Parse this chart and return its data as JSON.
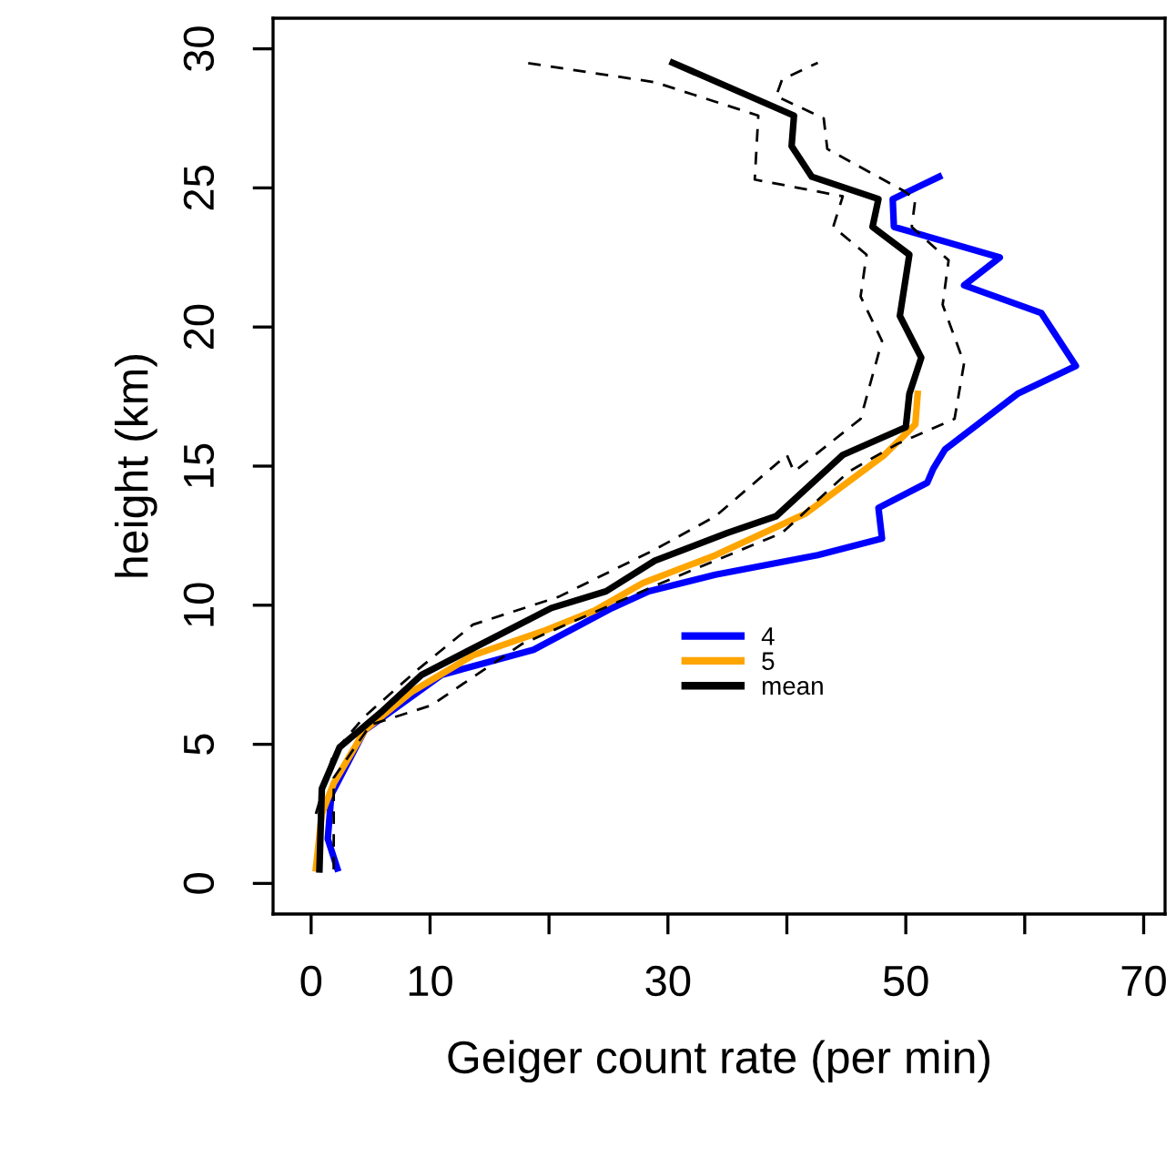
{
  "chart_data": {
    "type": "line",
    "xlabel": "Geiger count rate (per min)",
    "ylabel": "height (km)",
    "xlim": [
      -3.2,
      71.8
    ],
    "ylim": [
      -1.1,
      31.1
    ],
    "xticks": [
      0,
      10,
      {
        "value": 20,
        "label": null
      },
      30,
      {
        "value": 40,
        "label": null
      },
      50,
      {
        "value": 60,
        "label": null
      },
      70
    ],
    "yticks": [
      0,
      5,
      10,
      15,
      20,
      25,
      30
    ],
    "grid": false,
    "legend": "center",
    "marker": "none",
    "series": [
      {
        "name": "4",
        "color": "#0000ff",
        "line_style": "solid",
        "x": [
          2.2,
          1.4,
          1.7,
          4.5,
          11,
          18.7,
          25.3,
          28.4,
          34,
          42.6,
          48,
          47.7,
          51.8,
          52.3,
          53.3,
          59.4,
          64.3,
          61.4,
          54.9,
          57.9,
          49,
          48.9,
          52.8
        ],
        "values": [
          0.54,
          1.6,
          3.2,
          5.5,
          7.5,
          8.4,
          9.9,
          10.5,
          11.1,
          11.8,
          12.4,
          13.5,
          14.4,
          14.9,
          15.6,
          17.6,
          18.6,
          20.5,
          21.5,
          22.5,
          23.6,
          24.6,
          25.4
        ]
      },
      {
        "name": "5",
        "color": "#ffa500",
        "line_style": "solid",
        "x": [
          0.4,
          0.9,
          1.9,
          4.5,
          8.5,
          13.6,
          19.7,
          23.8,
          27.9,
          34,
          41.6,
          48.2,
          50.8,
          51
        ],
        "values": [
          0.54,
          2.5,
          3.6,
          5.5,
          6.9,
          8.2,
          9.1,
          9.8,
          10.8,
          11.8,
          13.3,
          15.4,
          16.5,
          17.6
        ]
      },
      {
        "name": "mean",
        "color": "#000000",
        "line_style": "solid",
        "x": [
          0.7,
          0.9,
          2.4,
          6,
          9.3,
          15.2,
          20.2,
          24.8,
          28.9,
          35,
          39.1,
          44.7,
          50,
          50.3,
          51.3,
          49.5,
          50.3,
          47.2,
          47.7,
          42.1,
          40.4,
          40.6,
          30.4
        ],
        "values": [
          0.5,
          3.4,
          4.9,
          6.2,
          7.5,
          8.8,
          9.9,
          10.5,
          11.6,
          12.6,
          13.2,
          15.4,
          16.4,
          17.6,
          18.9,
          20.4,
          22.6,
          23.6,
          24.6,
          25.4,
          26.5,
          27.6,
          29.5
        ]
      },
      {
        "color": "#000000",
        "line_style": "dashed",
        "x": [
          0.4,
          1.9,
          4.5,
          9,
          13.6,
          20.8,
          28.9,
          34,
          40,
          40.6,
          46.2,
          48,
          46.2,
          46.7,
          43.9,
          44.7,
          37.3,
          37.6,
          28.9,
          18
        ],
        "values": [
          2.5,
          4.7,
          6,
          7.7,
          9.3,
          10.3,
          12,
          13.2,
          15.4,
          14.8,
          16.7,
          19.5,
          21.1,
          22.6,
          23.6,
          24.7,
          25.3,
          27.6,
          28.8,
          29.5
        ]
      },
      {
        "color": "#000000",
        "line_style": "dashed",
        "x": [
          1.9,
          1.9,
          5,
          10.1,
          17.7,
          28.9,
          39.6,
          45.2,
          49.3,
          54.1,
          54.9,
          53.1,
          53.6,
          50.5,
          50.8,
          49.8,
          43.4,
          43.1,
          39.1,
          39.6,
          42.6
        ],
        "values": [
          0.5,
          3.8,
          5.7,
          6.4,
          8.6,
          10.7,
          12.6,
          14.8,
          15.8,
          16.7,
          18.7,
          20.8,
          22.4,
          23.6,
          24.6,
          24.9,
          26.4,
          27.5,
          28.3,
          28.9,
          29.5
        ]
      }
    ]
  }
}
